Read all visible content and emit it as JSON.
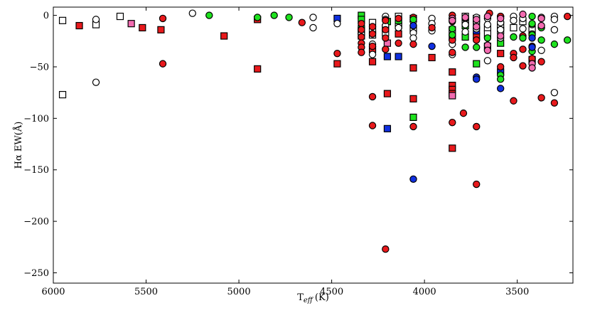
{
  "chart_data": {
    "type": "scatter",
    "title": "",
    "xlabel": "T",
    "xlabel_sub": "eff",
    "xlabel_unit": "(K)",
    "ylabel": "Hα EW(Å)",
    "xlim": [
      6000,
      3200
    ],
    "ylim": [
      -260,
      8
    ],
    "x_inverted": true,
    "grid": false,
    "legend": "none",
    "xticks": [
      6000,
      5500,
      5000,
      4500,
      4000,
      3500
    ],
    "xtick_labels": [
      "6000",
      "5500",
      "5000",
      "4500",
      "4000",
      "3500"
    ],
    "yticks": [
      0,
      -50,
      -100,
      -150,
      -200,
      -250
    ],
    "ytick_labels": [
      "0",
      "−50",
      "−100",
      "−150",
      "−200",
      "−250"
    ],
    "colors": {
      "white": "#ffffff",
      "red": "#e8191c",
      "green": "#1ee21e",
      "blue": "#1030e0",
      "pink": "#f26bb0"
    },
    "series": [
      {
        "marker": "square",
        "color": "red",
        "points": [
          [
            5860,
            -10
          ],
          [
            5520,
            -12
          ],
          [
            5420,
            -14
          ],
          [
            5080,
            -20
          ],
          [
            4900,
            -4
          ],
          [
            4900,
            -52
          ],
          [
            4470,
            -47
          ],
          [
            4280,
            -33
          ],
          [
            4280,
            -45
          ],
          [
            4200,
            -76
          ],
          [
            4140,
            -8
          ],
          [
            4140,
            -18
          ],
          [
            4060,
            -51
          ],
          [
            4060,
            -81
          ],
          [
            3960,
            -41
          ],
          [
            3850,
            -55
          ],
          [
            3850,
            -68
          ],
          [
            3850,
            -72
          ],
          [
            3850,
            -76
          ],
          [
            3850,
            -129
          ],
          [
            3780,
            -4
          ],
          [
            3720,
            -20
          ],
          [
            3590,
            -37
          ]
        ]
      },
      {
        "marker": "square",
        "color": "white",
        "points": [
          [
            5950,
            -5
          ],
          [
            5950,
            -77
          ],
          [
            5770,
            -9
          ],
          [
            5640,
            -1
          ],
          [
            4340,
            -15
          ],
          [
            4340,
            -20
          ],
          [
            4280,
            -7
          ],
          [
            4280,
            -14
          ],
          [
            4280,
            -19
          ],
          [
            4210,
            -12
          ],
          [
            4210,
            -17
          ],
          [
            4140,
            -1
          ],
          [
            4140,
            -10
          ],
          [
            4060,
            -3
          ],
          [
            4060,
            -13
          ],
          [
            3850,
            -14
          ],
          [
            3850,
            -21
          ],
          [
            3780,
            -1
          ],
          [
            3780,
            -7
          ],
          [
            3720,
            -3
          ],
          [
            3720,
            -9
          ],
          [
            3660,
            -12
          ],
          [
            3660,
            -18
          ],
          [
            3590,
            -9
          ],
          [
            3590,
            -15
          ],
          [
            3520,
            -12
          ],
          [
            3470,
            -6
          ],
          [
            3420,
            -14
          ]
        ]
      },
      {
        "marker": "square",
        "color": "green",
        "points": [
          [
            4340,
            0
          ],
          [
            4340,
            -4
          ],
          [
            4340,
            -13
          ],
          [
            4200,
            -6
          ],
          [
            4140,
            -5
          ],
          [
            4060,
            -99
          ],
          [
            3780,
            -10
          ],
          [
            3780,
            -21
          ],
          [
            3720,
            -47
          ],
          [
            3590,
            -27
          ],
          [
            3420,
            -43
          ]
        ]
      },
      {
        "marker": "square",
        "color": "pink",
        "points": [
          [
            5580,
            -8
          ],
          [
            4200,
            -27
          ],
          [
            3850,
            -78
          ],
          [
            3660,
            -30
          ]
        ]
      },
      {
        "marker": "square",
        "color": "blue",
        "points": [
          [
            4470,
            -3
          ],
          [
            4200,
            -40
          ],
          [
            4200,
            -110
          ],
          [
            4140,
            -40
          ],
          [
            3720,
            -15
          ],
          [
            3590,
            -55
          ]
        ]
      },
      {
        "marker": "circle",
        "color": "white",
        "points": [
          [
            5770,
            -4
          ],
          [
            5770,
            -65
          ],
          [
            5250,
            2
          ],
          [
            4600,
            -2
          ],
          [
            4600,
            -12
          ],
          [
            4470,
            -8
          ],
          [
            4340,
            -18
          ],
          [
            4280,
            -28
          ],
          [
            4280,
            -38
          ],
          [
            4210,
            -1
          ],
          [
            4210,
            -4
          ],
          [
            4210,
            -10
          ],
          [
            4140,
            -12
          ],
          [
            4060,
            -6
          ],
          [
            4060,
            -17
          ],
          [
            4060,
            -22
          ],
          [
            3960,
            -3
          ],
          [
            3960,
            -8
          ],
          [
            3960,
            -15
          ],
          [
            3850,
            -3
          ],
          [
            3850,
            -28
          ],
          [
            3850,
            -38
          ],
          [
            3780,
            -3
          ],
          [
            3780,
            -9
          ],
          [
            3780,
            -16
          ],
          [
            3720,
            -2
          ],
          [
            3720,
            -6
          ],
          [
            3720,
            -13
          ],
          [
            3660,
            -3
          ],
          [
            3660,
            -9
          ],
          [
            3660,
            -44
          ],
          [
            3590,
            -1
          ],
          [
            3590,
            -7
          ],
          [
            3590,
            -14
          ],
          [
            3590,
            -22
          ],
          [
            3520,
            -1
          ],
          [
            3520,
            -5
          ],
          [
            3470,
            -3
          ],
          [
            3470,
            -13
          ],
          [
            3420,
            -9
          ],
          [
            3420,
            -18
          ],
          [
            3370,
            -2
          ],
          [
            3370,
            -34
          ],
          [
            3300,
            -1
          ],
          [
            3300,
            -4
          ],
          [
            3300,
            -14
          ],
          [
            3300,
            -75
          ]
        ]
      },
      {
        "marker": "circle",
        "color": "red",
        "points": [
          [
            5410,
            -3
          ],
          [
            5410,
            -47
          ],
          [
            4660,
            -7
          ],
          [
            4470,
            -37
          ],
          [
            4340,
            -8
          ],
          [
            4340,
            -14
          ],
          [
            4340,
            -21
          ],
          [
            4340,
            -27
          ],
          [
            4340,
            -31
          ],
          [
            4340,
            -36
          ],
          [
            4280,
            -11
          ],
          [
            4280,
            -18
          ],
          [
            4280,
            -30
          ],
          [
            4280,
            -79
          ],
          [
            4280,
            -107
          ],
          [
            4210,
            -5
          ],
          [
            4210,
            -14
          ],
          [
            4210,
            -22
          ],
          [
            4210,
            -33
          ],
          [
            4210,
            -227
          ],
          [
            4140,
            -3
          ],
          [
            4140,
            -27
          ],
          [
            4060,
            -2
          ],
          [
            4060,
            -28
          ],
          [
            4060,
            -108
          ],
          [
            3960,
            -12
          ],
          [
            3850,
            0
          ],
          [
            3850,
            -6
          ],
          [
            3850,
            -24
          ],
          [
            3850,
            -36
          ],
          [
            3850,
            -104
          ],
          [
            3790,
            -95
          ],
          [
            3720,
            -24
          ],
          [
            3720,
            -108
          ],
          [
            3720,
            -164
          ],
          [
            3650,
            2
          ],
          [
            3590,
            -1
          ],
          [
            3590,
            -50
          ],
          [
            3520,
            -37
          ],
          [
            3520,
            -41
          ],
          [
            3520,
            -83
          ],
          [
            3470,
            -20
          ],
          [
            3470,
            -33
          ],
          [
            3470,
            -49
          ],
          [
            3420,
            -30
          ],
          [
            3420,
            -42
          ],
          [
            3370,
            -45
          ],
          [
            3370,
            -80
          ],
          [
            3300,
            -85
          ],
          [
            3230,
            -1
          ]
        ]
      },
      {
        "marker": "circle",
        "color": "green",
        "points": [
          [
            5160,
            0
          ],
          [
            4900,
            -2
          ],
          [
            4810,
            0
          ],
          [
            4730,
            -2
          ],
          [
            4060,
            -4
          ],
          [
            4060,
            -10
          ],
          [
            3850,
            -13
          ],
          [
            3850,
            -19
          ],
          [
            3780,
            -31
          ],
          [
            3720,
            -31
          ],
          [
            3660,
            -22
          ],
          [
            3590,
            -58
          ],
          [
            3590,
            -62
          ],
          [
            3520,
            -21
          ],
          [
            3470,
            -22
          ],
          [
            3420,
            -1
          ],
          [
            3420,
            -8
          ],
          [
            3420,
            -19
          ],
          [
            3420,
            -35
          ],
          [
            3370,
            -12
          ],
          [
            3370,
            -24
          ],
          [
            3300,
            -28
          ],
          [
            3230,
            -24
          ]
        ]
      },
      {
        "marker": "circle",
        "color": "pink",
        "points": [
          [
            3850,
            -3
          ],
          [
            3850,
            -5
          ],
          [
            3780,
            -2
          ],
          [
            3720,
            -4
          ],
          [
            3720,
            -11
          ],
          [
            3660,
            -1
          ],
          [
            3660,
            -29
          ],
          [
            3660,
            -34
          ],
          [
            3590,
            -3
          ],
          [
            3590,
            -20
          ],
          [
            3470,
            1
          ],
          [
            3420,
            -47
          ],
          [
            3420,
            -51
          ],
          [
            3370,
            -3
          ],
          [
            3370,
            -10
          ]
        ]
      },
      {
        "marker": "circle",
        "color": "blue",
        "points": [
          [
            4060,
            -10
          ],
          [
            4060,
            -159
          ],
          [
            3960,
            -30
          ],
          [
            3720,
            -60
          ],
          [
            3720,
            -62
          ],
          [
            3590,
            -71
          ],
          [
            3420,
            -22
          ],
          [
            3420,
            -31
          ]
        ]
      }
    ]
  }
}
